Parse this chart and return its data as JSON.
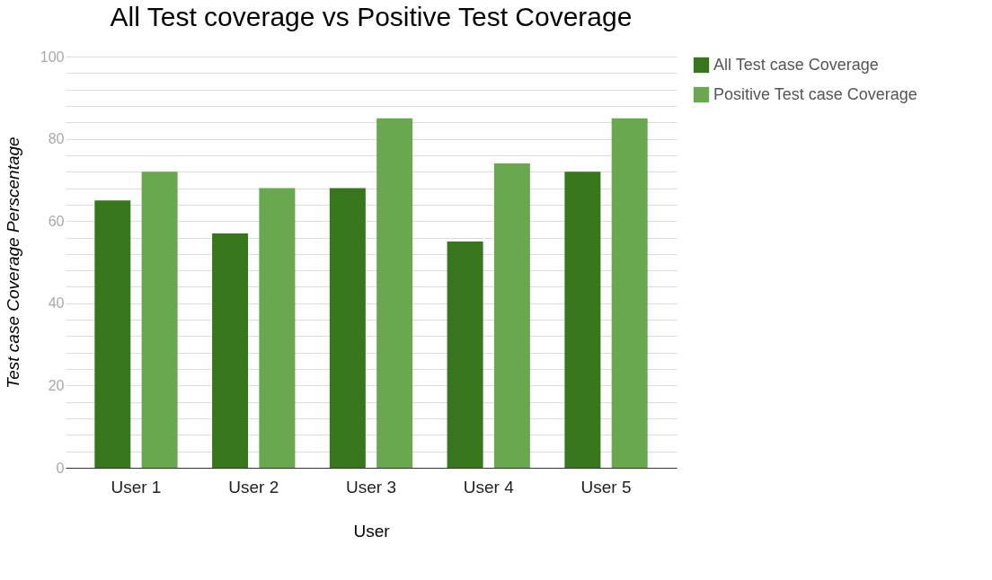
{
  "chart_data": {
    "type": "bar",
    "title": "All Test coverage vs Positive Test Coverage",
    "xlabel": "User",
    "ylabel": "Test case Coverage Perscentage",
    "categories": [
      "User 1",
      "User 2",
      "User 3",
      "User 4",
      "User 5"
    ],
    "series": [
      {
        "name": "All Test case Coverage",
        "color": "#38761d",
        "values": [
          65,
          57,
          68,
          55,
          72
        ]
      },
      {
        "name": "Positive Test case Coverage",
        "color": "#6aa84f",
        "values": [
          72,
          68,
          85,
          74,
          85
        ]
      }
    ],
    "ylim": [
      0,
      100
    ],
    "yticks": [
      0,
      {
        "value": 4,
        "label": null
      },
      {
        "value": 8,
        "label": null
      },
      {
        "value": 12,
        "label": null
      },
      {
        "value": 16,
        "label": null
      },
      20,
      {
        "value": 24,
        "label": null
      },
      {
        "value": 28,
        "label": null
      },
      {
        "value": 32,
        "label": null
      },
      {
        "value": 36,
        "label": null
      },
      40,
      {
        "value": 44,
        "label": null
      },
      {
        "value": 48,
        "label": null
      },
      {
        "value": 52,
        "label": null
      },
      {
        "value": 56,
        "label": null
      },
      60,
      {
        "value": 64,
        "label": null
      },
      {
        "value": 68,
        "label": null
      },
      {
        "value": 72,
        "label": null
      },
      {
        "value": 76,
        "label": null
      },
      80,
      {
        "value": 84,
        "label": null
      },
      {
        "value": 88,
        "label": null
      },
      {
        "value": 92,
        "label": null
      },
      {
        "value": 96,
        "label": null
      },
      100
    ],
    "grid": "y",
    "legend": "top right"
  }
}
